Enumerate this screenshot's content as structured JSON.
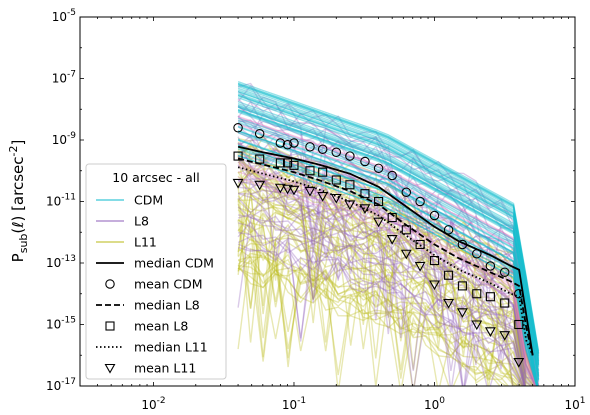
{
  "chart_data": {
    "type": "line",
    "xscale": "log",
    "yscale": "log",
    "xlim": [
      0.003,
      10
    ],
    "ylim": [
      1e-17,
      1e-05
    ],
    "ylabel": "P_sub(ℓ) [arcsec^-2]",
    "xlabel": "",
    "grid": false,
    "x_ticks": [
      "10^-2",
      "10^-1",
      "10^0",
      "10^1"
    ],
    "y_ticks": [
      "10^-17",
      "10^-15",
      "10^-13",
      "10^-11",
      "10^-9",
      "10^-7",
      "10^-5"
    ],
    "legend": {
      "title": "10 arcsec - all",
      "placement": "lower-left",
      "entries": [
        "CDM",
        "L8",
        "L11",
        "median CDM",
        "mean CDM",
        "median L8",
        "mean L8",
        "median L11",
        "mean L11"
      ]
    },
    "colors": {
      "CDM": "#17becf",
      "L8": "#9467bd",
      "L11": "#bcbd22",
      "extra": "#e377c2"
    },
    "series": [
      {
        "name": "median CDM",
        "style": "solid",
        "x": [
          0.04,
          0.06,
          0.1,
          0.15,
          0.25,
          0.4,
          0.6,
          1.0,
          1.5,
          2.5,
          3.5,
          4.0,
          4.5,
          5.0
        ],
        "y": [
          6e-10,
          4e-10,
          2.5e-10,
          1.6e-10,
          8e-11,
          3e-11,
          8e-12,
          1.5e-12,
          5e-13,
          1.8e-13,
          8e-14,
          6e-14,
          2e-15,
          1e-16
        ]
      },
      {
        "name": "median L8",
        "style": "dashed",
        "x": [
          0.04,
          0.06,
          0.1,
          0.15,
          0.25,
          0.4,
          0.6,
          1.0,
          1.5,
          2.5,
          3.5,
          4.0,
          4.5,
          5.0
        ],
        "y": [
          2.5e-10,
          1.6e-10,
          9e-11,
          5e-11,
          2.2e-11,
          8e-12,
          2e-12,
          4e-13,
          1.4e-13,
          5e-14,
          2.5e-14,
          1.8e-14,
          8e-16,
          1e-16
        ]
      },
      {
        "name": "median L11",
        "style": "dotted",
        "x": [
          0.04,
          0.06,
          0.1,
          0.15,
          0.25,
          0.4,
          0.6,
          1.0,
          1.5,
          2.5,
          3.5,
          4.0,
          4.5,
          5.0
        ],
        "y": [
          1.3e-10,
          8e-11,
          4.5e-11,
          2.5e-11,
          1e-11,
          3.5e-12,
          9e-13,
          1.8e-13,
          6e-14,
          2.2e-14,
          1e-14,
          8e-15,
          3e-16,
          1e-16
        ]
      },
      {
        "name": "mean CDM",
        "marker": "circle",
        "x": [
          0.04,
          0.057,
          0.08,
          0.09,
          0.1,
          0.13,
          0.16,
          0.2,
          0.25,
          0.32,
          0.4,
          0.5,
          0.63,
          0.79,
          1.0,
          1.26,
          1.58,
          2.0,
          2.5,
          3.16,
          3.98
        ],
        "y": [
          2.5e-09,
          1.6e-09,
          8e-10,
          7e-10,
          8e-10,
          6e-10,
          5e-10,
          4e-10,
          3e-10,
          2e-10,
          1.2e-10,
          7e-11,
          2e-11,
          1e-11,
          3.5e-12,
          1.2e-12,
          4e-13,
          2e-13,
          8e-14,
          5e-14,
          1e-14
        ]
      },
      {
        "name": "mean L8",
        "marker": "square",
        "x": [
          0.04,
          0.057,
          0.08,
          0.09,
          0.1,
          0.13,
          0.16,
          0.2,
          0.25,
          0.32,
          0.4,
          0.5,
          0.63,
          0.79,
          1.0,
          1.26,
          1.58,
          2.0,
          2.5,
          3.16,
          3.98
        ],
        "y": [
          3e-10,
          2.4e-10,
          1.8e-10,
          1.8e-10,
          1.5e-10,
          1e-10,
          9e-11,
          5e-11,
          3.5e-11,
          1.8e-11,
          1e-11,
          3e-12,
          1.2e-12,
          4e-13,
          1.2e-13,
          4e-14,
          1.8e-14,
          1e-14,
          8e-15,
          5e-15,
          1e-15
        ]
      },
      {
        "name": "mean L11",
        "marker": "triangle-down",
        "x": [
          0.04,
          0.057,
          0.08,
          0.09,
          0.1,
          0.13,
          0.16,
          0.2,
          0.25,
          0.32,
          0.4,
          0.5,
          0.63,
          0.79,
          1.0,
          1.26,
          1.58,
          2.0,
          2.5,
          3.16,
          3.98
        ],
        "y": [
          4e-11,
          3.5e-11,
          2.8e-11,
          2.6e-11,
          2.4e-11,
          2.2e-11,
          1.5e-11,
          1.3e-11,
          8e-12,
          6e-12,
          2.2e-12,
          6e-13,
          2e-13,
          8e-14,
          2e-14,
          5e-15,
          2.5e-15,
          1e-15,
          6e-16,
          4.5e-16,
          6e-17
        ]
      }
    ]
  }
}
